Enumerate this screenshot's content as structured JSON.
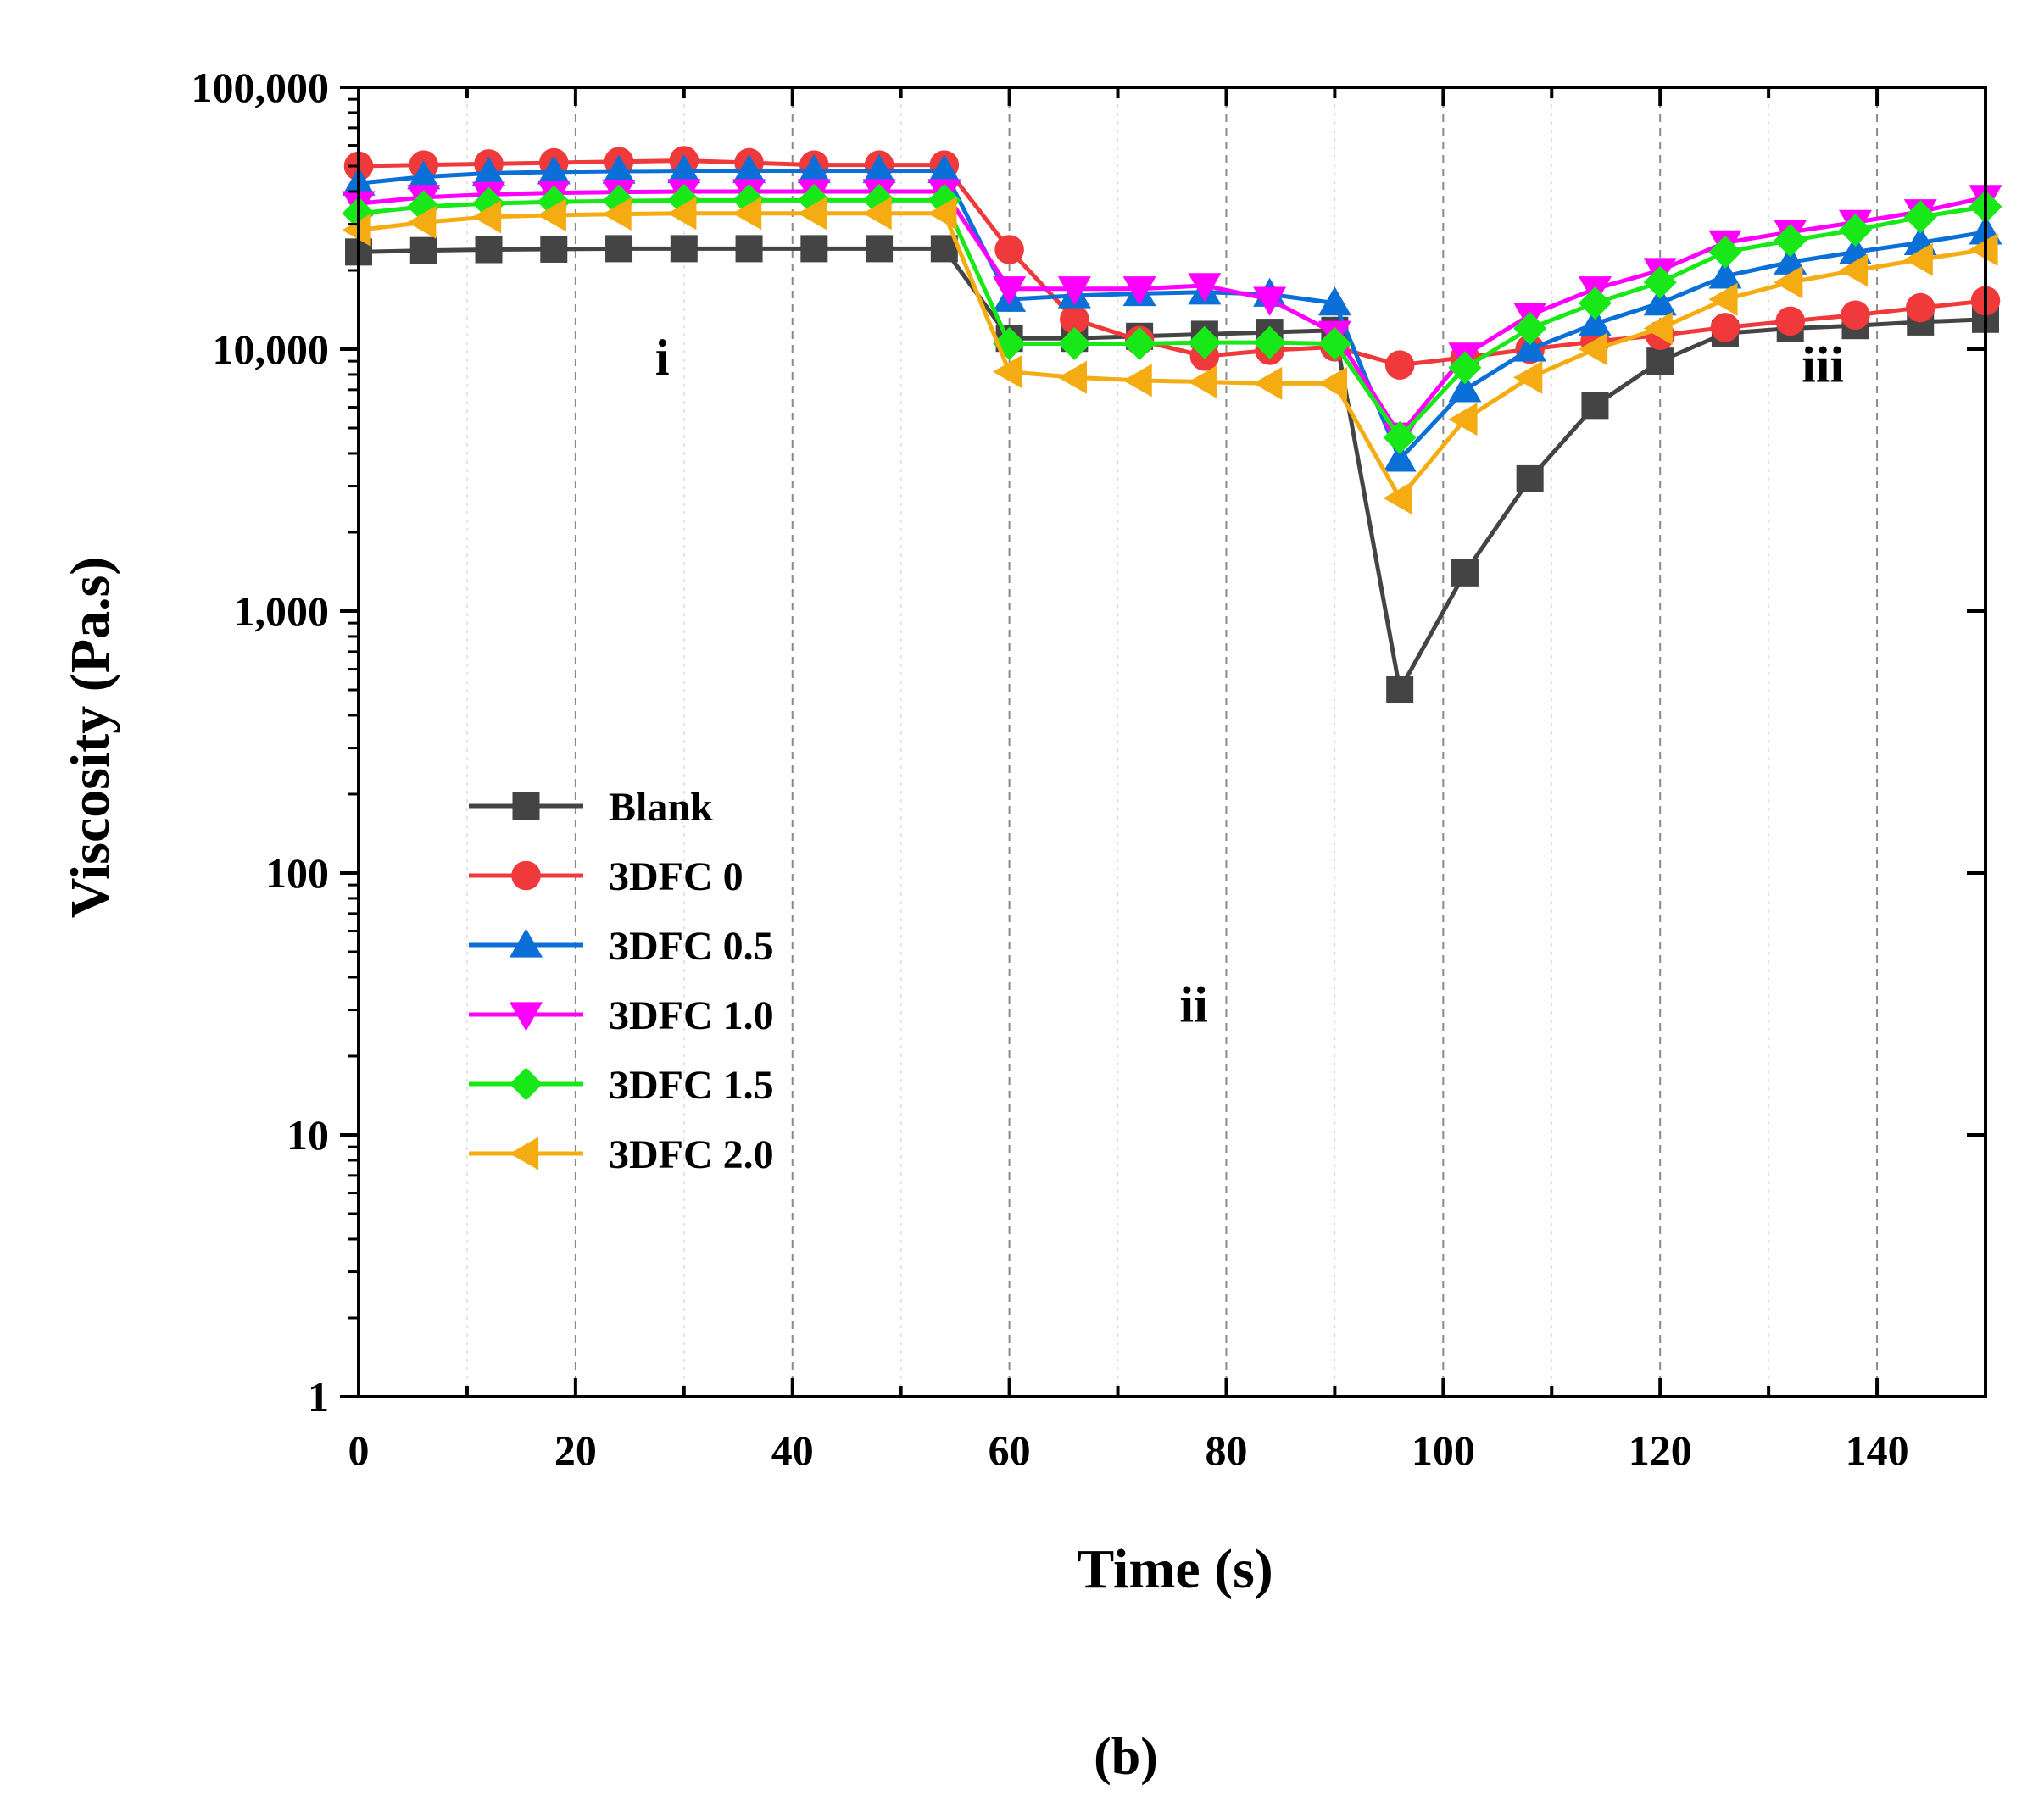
{
  "chart_data": {
    "type": "line",
    "xlabel": "Time (s)",
    "ylabel": "Viscosity (Pa.s)",
    "xlim": [
      0,
      150
    ],
    "ylim": [
      1,
      100000
    ],
    "yscale": "log",
    "x_ticks": [
      0,
      20,
      40,
      60,
      80,
      100,
      120,
      140
    ],
    "x_tick_labels": [
      "0",
      "20",
      "40",
      "60",
      "80",
      "100",
      "120",
      "140"
    ],
    "y_ticks": [
      1,
      10,
      100,
      1000,
      10000,
      100000
    ],
    "y_tick_labels": [
      "1",
      "10",
      "100",
      "1,000",
      "10,000",
      "100,000"
    ],
    "grid": "vertical dashed",
    "legend_position": "center-left",
    "annotations": [
      {
        "text": "i",
        "x": 28,
        "y": 8000
      },
      {
        "text": "ii",
        "x": 77,
        "y": 27
      },
      {
        "text": "iii",
        "x": 135,
        "y": 7500
      }
    ],
    "caption": "(b)",
    "x": [
      0,
      6,
      12,
      18,
      24,
      30,
      36,
      42,
      48,
      54,
      60,
      66,
      72,
      78,
      84,
      90,
      96,
      102,
      108,
      114,
      120,
      126,
      132,
      138,
      144,
      150
    ],
    "series": [
      {
        "name": "Blank",
        "color": "#444444",
        "marker": "square",
        "values": [
          23500,
          23800,
          24000,
          24100,
          24200,
          24200,
          24200,
          24200,
          24200,
          24200,
          11000,
          11000,
          11200,
          11400,
          11600,
          11800,
          500,
          1400,
          3200,
          6100,
          9000,
          11500,
          12000,
          12300,
          12700,
          13000
        ]
      },
      {
        "name": "3DFC 0",
        "color": "#f0393b",
        "marker": "circle",
        "values": [
          50000,
          50500,
          51000,
          51500,
          52000,
          52500,
          51500,
          50500,
          50500,
          50500,
          24000,
          13000,
          10800,
          9400,
          9900,
          10200,
          8700,
          9300,
          10000,
          10700,
          11300,
          12100,
          12800,
          13500,
          14400,
          15300
        ]
      },
      {
        "name": "3DFC 0.5",
        "color": "#0a6fd6",
        "marker": "triangle-up",
        "values": [
          43000,
          45500,
          47000,
          47500,
          47800,
          48000,
          48000,
          48000,
          48000,
          48000,
          15500,
          16000,
          16300,
          16500,
          16200,
          15000,
          3800,
          7000,
          10000,
          12500,
          15000,
          19000,
          21500,
          23500,
          25500,
          28000
        ]
      },
      {
        "name": "3DFC 1.0",
        "color": "#ff00ff",
        "marker": "triangle-down",
        "values": [
          36000,
          38000,
          39000,
          39500,
          39800,
          40000,
          40000,
          40000,
          40000,
          40000,
          17000,
          17000,
          17000,
          17500,
          15500,
          11500,
          4700,
          9500,
          13500,
          17000,
          20000,
          25500,
          28000,
          30500,
          33500,
          38000
        ]
      },
      {
        "name": "3DFC 1.5",
        "color": "#18e818",
        "marker": "diamond",
        "values": [
          33000,
          35000,
          36000,
          36500,
          36800,
          37000,
          37000,
          37000,
          37000,
          37000,
          10500,
          10500,
          10500,
          10600,
          10600,
          10500,
          4600,
          8500,
          12000,
          15000,
          18000,
          23500,
          26000,
          28500,
          32000,
          35000
        ]
      },
      {
        "name": "3DFC 2.0",
        "color": "#f5ab12",
        "marker": "triangle-left",
        "values": [
          28500,
          30500,
          32000,
          32500,
          32800,
          33000,
          33000,
          33000,
          33000,
          33000,
          8200,
          7800,
          7600,
          7500,
          7400,
          7400,
          2700,
          5400,
          7800,
          10000,
          12000,
          15500,
          18000,
          20000,
          22000,
          24000
        ]
      }
    ]
  }
}
